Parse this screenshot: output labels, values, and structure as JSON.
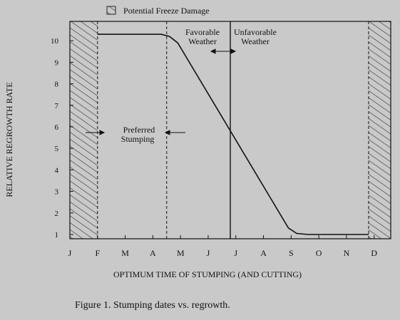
{
  "chart_data": {
    "type": "line",
    "legend": {
      "label": "Potential Freeze Damage",
      "placement": "top-left"
    },
    "xlabel": "OPTIMUM TIME OF STUMPING (AND CUTTING)",
    "ylabel": "RELATIVE REGROWTH RATE",
    "caption": "Figure 1. Stumping dates vs. regrowth.",
    "categories": [
      "J",
      "F",
      "M",
      "A",
      "M",
      "J",
      "J",
      "A",
      "S",
      "O",
      "N",
      "D"
    ],
    "yticks": [
      "1",
      "2",
      "3",
      "4",
      "5",
      "6",
      "7",
      "8",
      "9",
      "10"
    ],
    "ylim": [
      0.8,
      10.9
    ],
    "xlim": [
      0,
      11.6
    ],
    "grid": false,
    "series": [
      {
        "x": [
          1,
          3.3,
          3.6,
          3.9,
          7.9,
          8.2,
          8.6,
          10.8
        ],
        "y": [
          10.3,
          10.3,
          10.2,
          9.9,
          1.3,
          1.05,
          1.0,
          1.0
        ]
      }
    ],
    "regions": [
      {
        "type": "hatched",
        "from": 0,
        "to": 1,
        "legend": true
      },
      {
        "type": "hatched",
        "from": 10.8,
        "to": 11.6,
        "legend": true
      }
    ],
    "vlines": [
      {
        "x": 1,
        "style": "dashed"
      },
      {
        "x": 3.5,
        "style": "dashed"
      },
      {
        "x": 10.8,
        "style": "dashed"
      },
      {
        "x": 5.8,
        "style": "solid"
      }
    ],
    "annotations": {
      "preferred_line1": "Preferred",
      "preferred_line2": "Stumping",
      "favorable_line1": "Favorable",
      "favorable_line2": "Weather",
      "unfavorable_line1": "Unfavorable",
      "unfavorable_line2": "Weather"
    },
    "colors": {
      "background": "#c9c9c9",
      "ink": "#111111"
    }
  }
}
